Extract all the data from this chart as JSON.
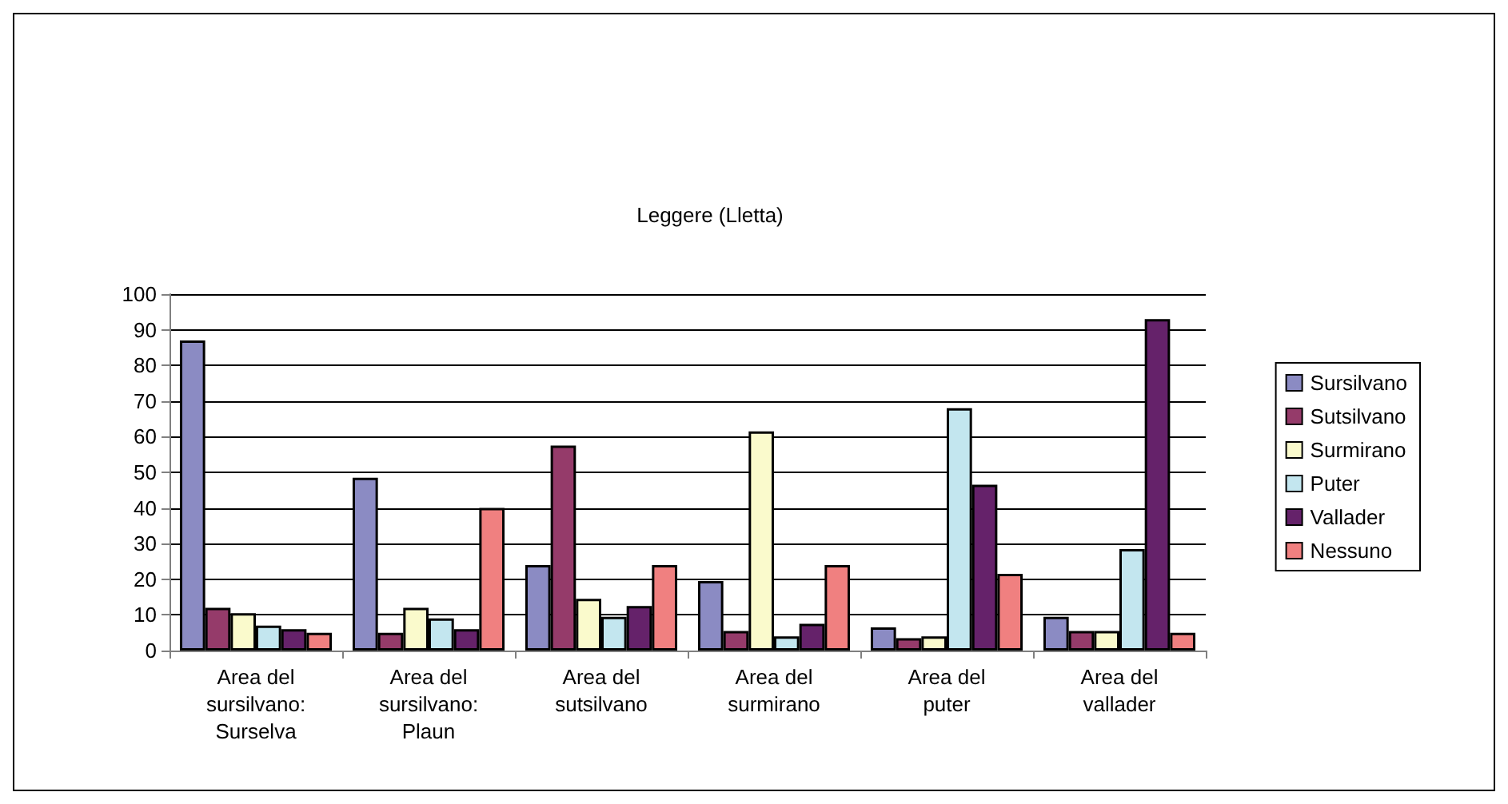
{
  "chart_data": {
    "type": "bar",
    "title": "Leggere (Lletta)",
    "categories": [
      "Area del\nsursilvano:\nSurselva",
      "Area del\nsursilvano:\nPlaun",
      "Area del\nsutsilvano",
      "Area del\nsurmirano",
      "Area del\nputer",
      "Area del\nvallader"
    ],
    "series": [
      {
        "name": "Sursilvano",
        "color": "#8b8bc3",
        "values": [
          87,
          48.5,
          24,
          19.5,
          6.5,
          9.5
        ]
      },
      {
        "name": "Sutsilvano",
        "color": "#953b6a",
        "values": [
          12,
          5,
          57.5,
          5.5,
          3.5,
          5.5
        ]
      },
      {
        "name": "Surmirano",
        "color": "#fafacc",
        "values": [
          10.5,
          12,
          14.5,
          61.5,
          4,
          5.5
        ]
      },
      {
        "name": "Puter",
        "color": "#c3e6ef",
        "values": [
          7,
          9,
          9.5,
          4,
          68,
          28.5
        ]
      },
      {
        "name": "Vallader",
        "color": "#65226a",
        "values": [
          6,
          6,
          12.5,
          7.5,
          46.5,
          93
        ]
      },
      {
        "name": "Nessuno",
        "color": "#f08080",
        "values": [
          5,
          40,
          24,
          24,
          21.5,
          5
        ]
      }
    ],
    "ylim": [
      0,
      100
    ],
    "yticks": [
      0,
      10,
      20,
      30,
      40,
      50,
      60,
      70,
      80,
      90,
      100
    ],
    "grid": "y",
    "legend": "right"
  }
}
